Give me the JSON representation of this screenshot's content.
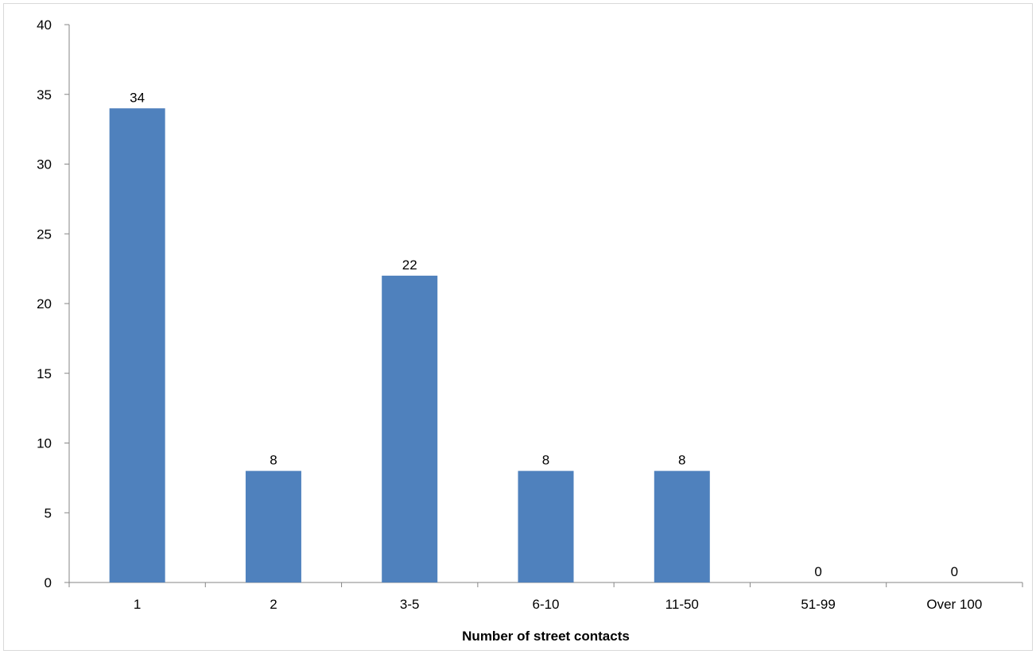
{
  "chart_data": {
    "type": "bar",
    "categories": [
      "1",
      "2",
      "3-5",
      "6-10",
      "11-50",
      "51-99",
      "Over 100"
    ],
    "values": [
      34,
      8,
      22,
      8,
      8,
      0,
      0
    ],
    "data_labels": [
      "34",
      "8",
      "22",
      "8",
      "8",
      "0",
      "0"
    ],
    "title": "",
    "xlabel": "Number of street contacts",
    "ylabel": "",
    "ylim": [
      0,
      40
    ],
    "yticks": [
      0,
      5,
      10,
      15,
      20,
      25,
      30,
      35,
      40
    ],
    "ytick_labels": [
      "0",
      "5",
      "10",
      "15",
      "20",
      "25",
      "30",
      "35",
      "40"
    ],
    "grid": false,
    "legend": "none",
    "bar_color": "#4f81bd",
    "axis_color": "#868686"
  }
}
